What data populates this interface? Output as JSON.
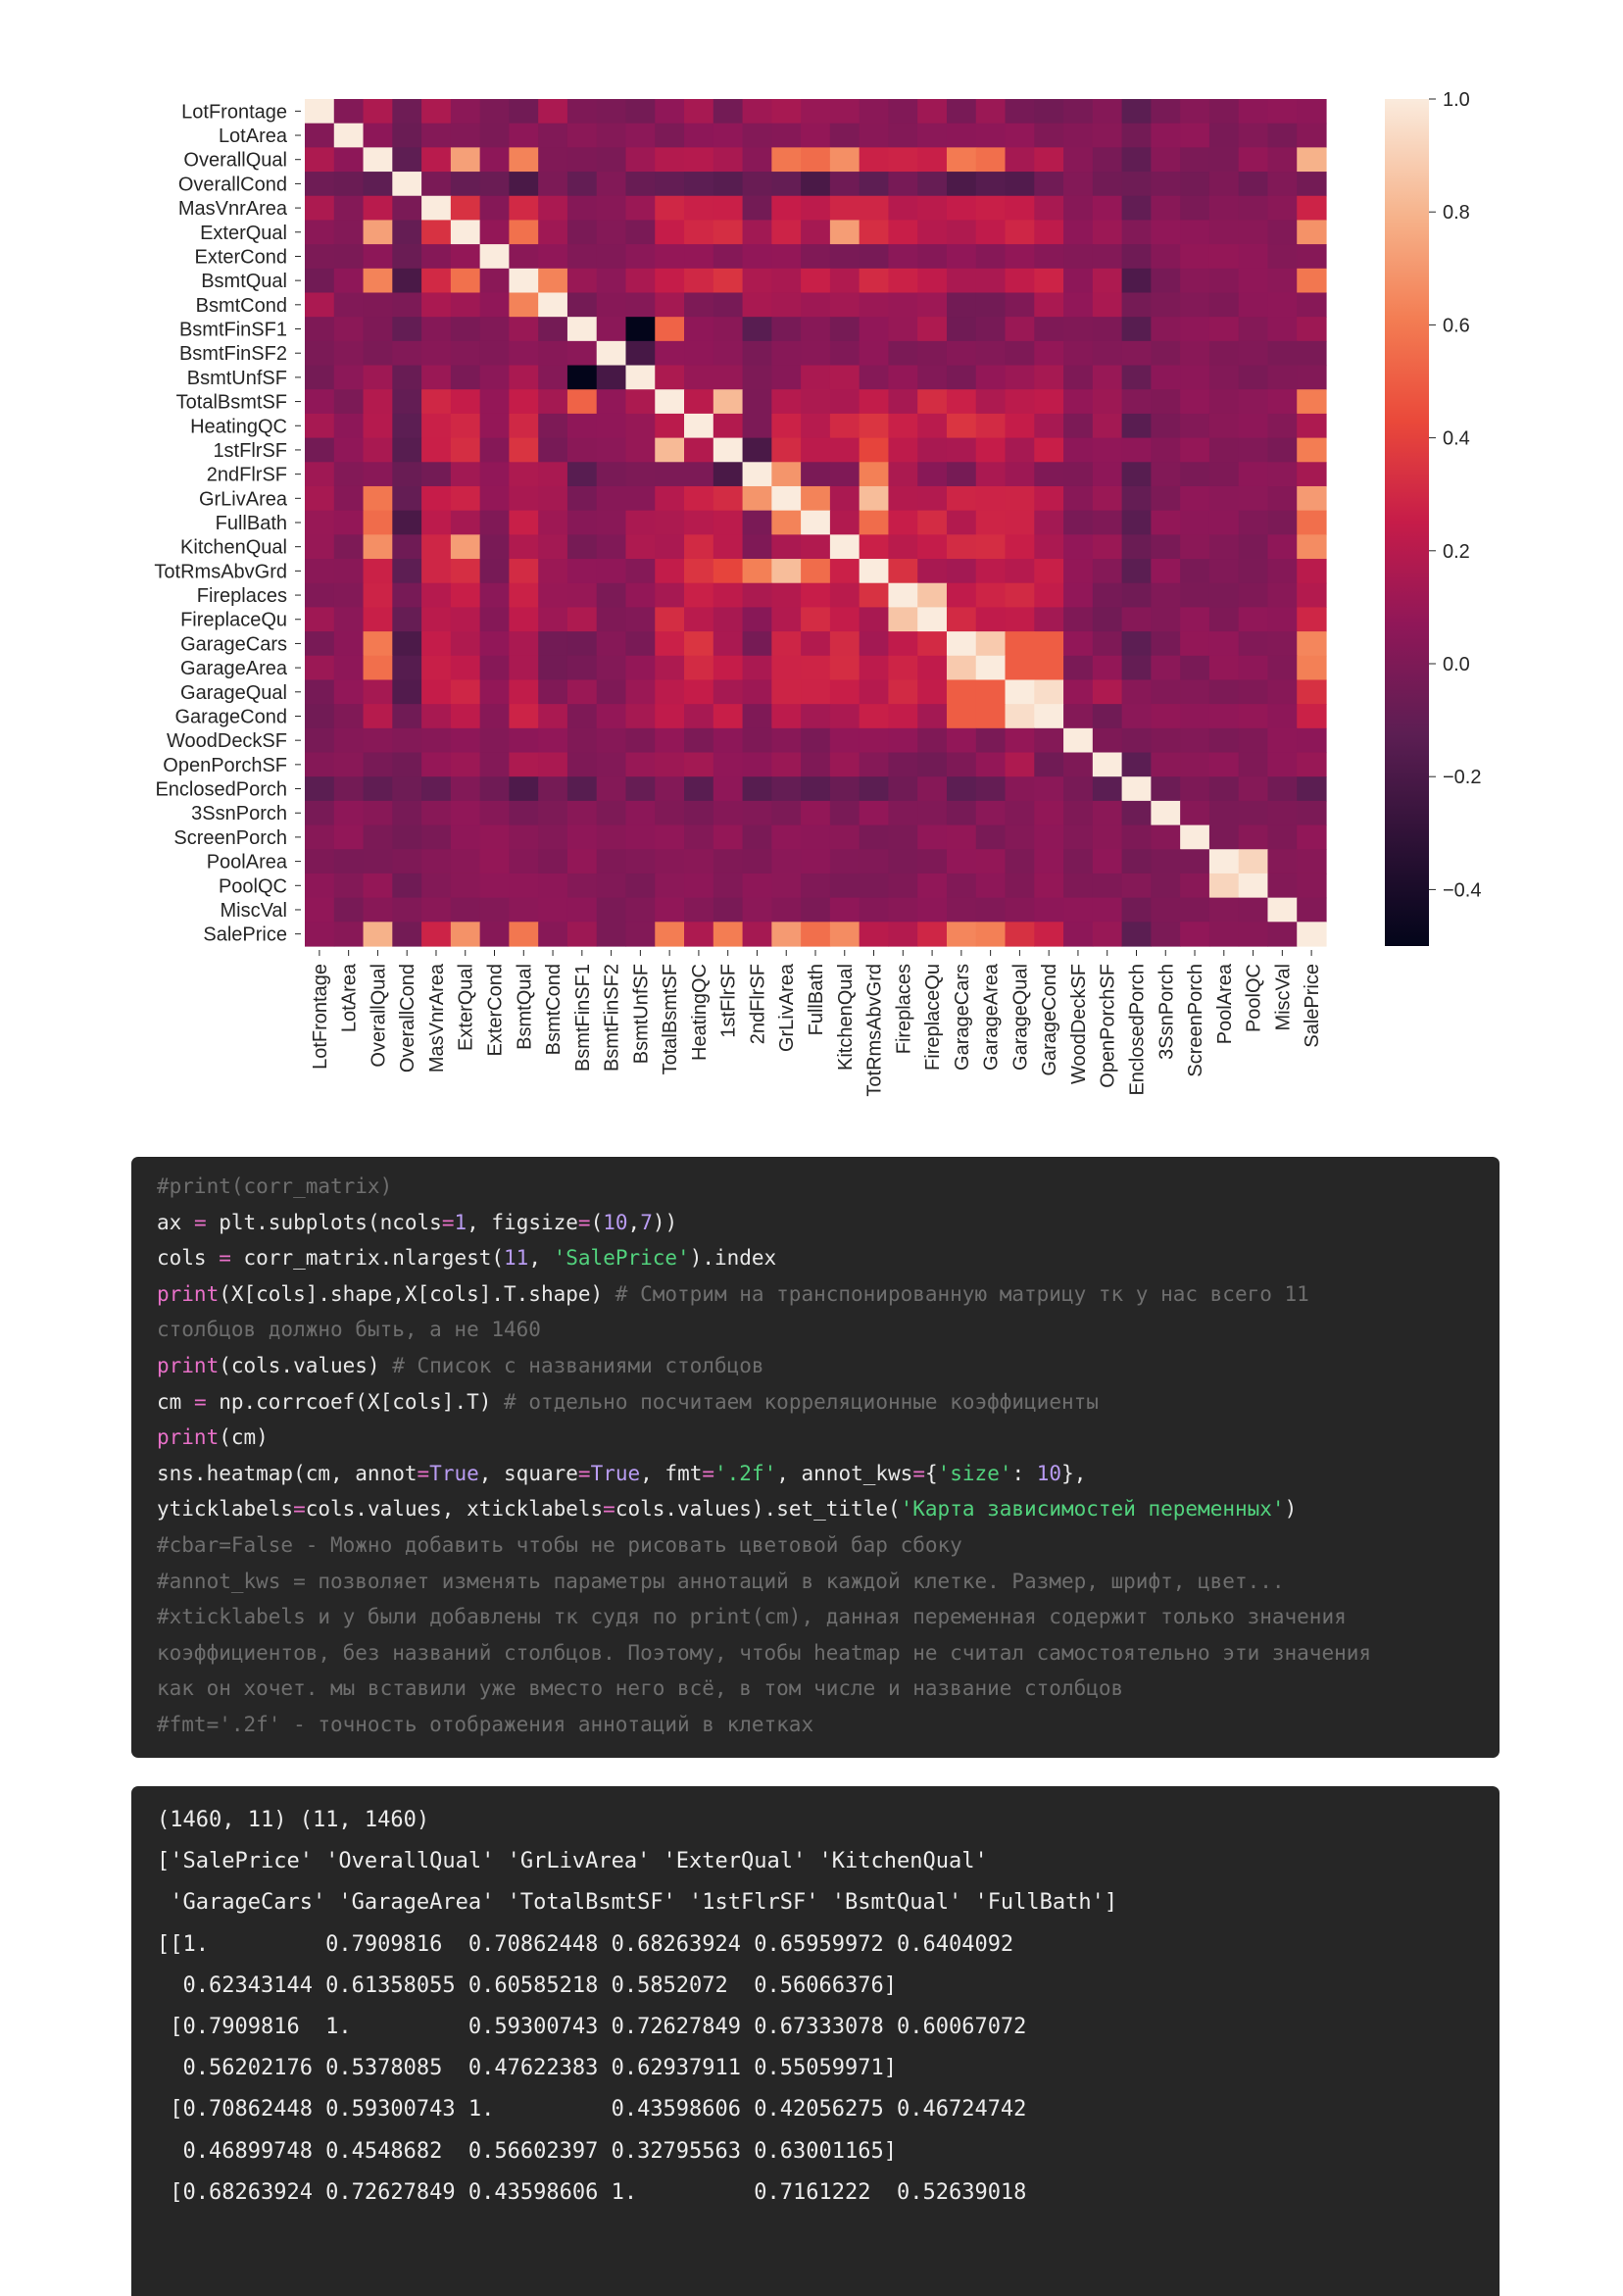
{
  "chart_data": {
    "type": "heatmap",
    "labels": [
      "LotFrontage",
      "LotArea",
      "OverallQual",
      "OverallCond",
      "MasVnrArea",
      "ExterQual",
      "ExterCond",
      "BsmtQual",
      "BsmtCond",
      "BsmtFinSF1",
      "BsmtFinSF2",
      "BsmtUnfSF",
      "TotalBsmtSF",
      "HeatingQC",
      "1stFlrSF",
      "2ndFlrSF",
      "GrLivArea",
      "FullBath",
      "KitchenQual",
      "TotRmsAbvGrd",
      "Fireplaces",
      "FireplaceQu",
      "GarageCars",
      "GarageArea",
      "GarageQual",
      "GarageCond",
      "WoodDeckSF",
      "OpenPorchSF",
      "EnclosedPorch",
      "3SsnPorch",
      "ScreenPorch",
      "PoolArea",
      "PoolQC",
      "MiscVal",
      "SalePrice"
    ],
    "colorbar": {
      "min": -0.5,
      "max": 1.0,
      "ticks": [
        1.0,
        0.8,
        0.6,
        0.4,
        0.2,
        0.0,
        -0.2,
        -0.4
      ],
      "tick_labels": [
        "1.0",
        "0.8",
        "0.6",
        "0.4",
        "0.2",
        "0.0",
        "−0.2",
        "−0.4"
      ]
    },
    "colormap": "rocket",
    "strong_pairs": [
      [
        "GarageCars",
        "GarageArea",
        0.88
      ],
      [
        "GarageQual",
        "GarageCond",
        0.95
      ],
      [
        "PoolArea",
        "PoolQC",
        0.92
      ],
      [
        "TotalBsmtSF",
        "1stFlrSF",
        0.82
      ],
      [
        "GrLivArea",
        "TotRmsAbvGrd",
        0.83
      ],
      [
        "Fireplaces",
        "FireplaceQu",
        0.86
      ],
      [
        "OverallQual",
        "SalePrice",
        0.79
      ],
      [
        "GrLivArea",
        "SalePrice",
        0.71
      ],
      [
        "ExterQual",
        "SalePrice",
        0.68
      ],
      [
        "KitchenQual",
        "SalePrice",
        0.66
      ],
      [
        "GarageCars",
        "SalePrice",
        0.64
      ],
      [
        "GarageArea",
        "SalePrice",
        0.62
      ],
      [
        "TotalBsmtSF",
        "SalePrice",
        0.61
      ],
      [
        "1stFlrSF",
        "SalePrice",
        0.61
      ],
      [
        "BsmtQual",
        "SalePrice",
        0.59
      ],
      [
        "FullBath",
        "SalePrice",
        0.56
      ],
      [
        "OverallQual",
        "ExterQual",
        0.73
      ],
      [
        "OverallQual",
        "GrLivArea",
        0.59
      ],
      [
        "OverallQual",
        "KitchenQual",
        0.67
      ],
      [
        "OverallQual",
        "BsmtQual",
        0.63
      ],
      [
        "OverallQual",
        "GarageCars",
        0.6
      ],
      [
        "OverallQual",
        "GarageArea",
        0.56
      ],
      [
        "OverallQual",
        "FullBath",
        0.55
      ],
      [
        "ExterQual",
        "KitchenQual",
        0.72
      ],
      [
        "ExterQual",
        "BsmtQual",
        0.57
      ],
      [
        "GrLivArea",
        "2ndFlrSF",
        0.69
      ],
      [
        "GrLivArea",
        "FullBath",
        0.63
      ],
      [
        "TotRmsAbvGrd",
        "2ndFlrSF",
        0.62
      ],
      [
        "BsmtFinSF1",
        "BsmtUnfSF",
        -0.5
      ],
      [
        "BsmtFinSF1",
        "TotalBsmtSF",
        0.52
      ],
      [
        "2ndFlrSF",
        "1stFlrSF",
        -0.2
      ],
      [
        "BsmtQual",
        "BsmtCond",
        0.63
      ],
      [
        "GarageCars",
        "GarageQual",
        0.5
      ],
      [
        "GarageCars",
        "GarageCond",
        0.5
      ],
      [
        "GarageArea",
        "GarageQual",
        0.5
      ],
      [
        "GarageArea",
        "GarageCond",
        0.5
      ],
      [
        "TotRmsAbvGrd",
        "FullBath",
        0.55
      ],
      [
        "TotRmsAbvGrd",
        "1stFlrSF",
        0.41
      ],
      [
        "OverallCond",
        "GarageCars",
        -0.19
      ],
      [
        "OverallCond",
        "GarageArea",
        -0.15
      ],
      [
        "OverallCond",
        "BsmtQual",
        -0.2
      ],
      [
        "OverallCond",
        "FullBath",
        -0.2
      ],
      [
        "EnclosedPorch",
        "BsmtQual",
        -0.18
      ],
      [
        "EnclosedPorch",
        "OverallQual",
        -0.11
      ],
      [
        "EnclosedPorch",
        "SalePrice",
        -0.13
      ],
      [
        "BsmtFinSF1",
        "2ndFlrSF",
        -0.14
      ],
      [
        "BsmtUnfSF",
        "2ndFlrSF",
        0.0
      ],
      [
        "BsmtUnfSF",
        "BsmtFinSF2",
        -0.21
      ]
    ]
  },
  "code_cell": {
    "lines": [
      [
        [
          "#print(corr_matrix)",
          "comment"
        ]
      ],
      [
        [
          "ax ",
          "plain"
        ],
        [
          "=",
          "op"
        ],
        [
          " plt.subplots(ncols",
          "plain"
        ],
        [
          "=",
          "op"
        ],
        [
          "1",
          "num"
        ],
        [
          ", figsize",
          "plain"
        ],
        [
          "=",
          "op"
        ],
        [
          "(",
          "plain"
        ],
        [
          "10",
          "num"
        ],
        [
          ",",
          "plain"
        ],
        [
          "7",
          "num"
        ],
        [
          "))",
          "plain"
        ]
      ],
      [
        [
          "cols ",
          "plain"
        ],
        [
          "=",
          "op"
        ],
        [
          " corr_matrix.nlargest(",
          "plain"
        ],
        [
          "11",
          "num"
        ],
        [
          ", ",
          "plain"
        ],
        [
          "'SalePrice'",
          "str"
        ],
        [
          ").index",
          "plain"
        ]
      ],
      [
        [
          "print",
          "kw"
        ],
        [
          "(X[cols].shape,X[cols].T.shape) ",
          "plain"
        ],
        [
          "# Смотрим на транспонированную матрицу тк у нас всего 11",
          "comment"
        ]
      ],
      [
        [
          "столбцов должно быть, а не 1460",
          "comment"
        ]
      ],
      [
        [
          "print",
          "kw"
        ],
        [
          "(cols.values) ",
          "plain"
        ],
        [
          "# Список с названиями столбцов",
          "comment"
        ]
      ],
      [
        [
          "cm ",
          "plain"
        ],
        [
          "=",
          "op"
        ],
        [
          " np.corrcoef(X[cols].T) ",
          "plain"
        ],
        [
          "# отдельно посчитаем корреляционные коэффициенты",
          "comment"
        ]
      ],
      [
        [
          "print",
          "kw"
        ],
        [
          "(cm)",
          "plain"
        ]
      ],
      [
        [
          "sns.heatmap(cm, annot",
          "plain"
        ],
        [
          "=",
          "op"
        ],
        [
          "True",
          "num"
        ],
        [
          ", square",
          "plain"
        ],
        [
          "=",
          "op"
        ],
        [
          "True",
          "num"
        ],
        [
          ", fmt",
          "plain"
        ],
        [
          "=",
          "op"
        ],
        [
          "'.2f'",
          "str"
        ],
        [
          ", annot_kws",
          "plain"
        ],
        [
          "=",
          "op"
        ],
        [
          "{",
          "plain"
        ],
        [
          "'size'",
          "str"
        ],
        [
          ": ",
          "plain"
        ],
        [
          "10",
          "num"
        ],
        [
          "},",
          "plain"
        ]
      ],
      [
        [
          "yticklabels",
          "plain"
        ],
        [
          "=",
          "op"
        ],
        [
          "cols.values, xticklabels",
          "plain"
        ],
        [
          "=",
          "op"
        ],
        [
          "cols.values).set_title(",
          "plain"
        ],
        [
          "'Карта зависимостей переменных'",
          "str"
        ],
        [
          ")",
          "plain"
        ]
      ],
      [
        [
          "#cbar=False - Можно добавить чтобы не рисовать цветовой бар сбоку",
          "comment"
        ]
      ],
      [
        [
          "#annot_kws = позволяет изменять параметры аннотаций в каждой клетке. Размер, шрифт, цвет...",
          "comment"
        ]
      ],
      [
        [
          "#xticklabels и у были добавлены тк судя по print(cm), данная переменная содержит только значения",
          "comment"
        ]
      ],
      [
        [
          "коэффициентов, без названий столбцов. Поэтому, чтобы heatmap не считал самостоятельно эти значения",
          "comment"
        ]
      ],
      [
        [
          "как он хочет. мы вставили уже вместо него всё, в том числе и название столбцов",
          "comment"
        ]
      ],
      [
        [
          "#fmt='.2f' - точность отображения аннотаций в клетках",
          "comment"
        ]
      ]
    ]
  },
  "output_cell": {
    "lines": [
      "(1460, 11) (11, 1460)",
      "['SalePrice' 'OverallQual' 'GrLivArea' 'ExterQual' 'KitchenQual'",
      " 'GarageCars' 'GarageArea' 'TotalBsmtSF' '1stFlrSF' 'BsmtQual' 'FullBath']",
      "[[1.         0.7909816  0.70862448 0.68263924 0.65959972 0.6404092",
      "  0.62343144 0.61358055 0.60585218 0.5852072  0.56066376]",
      " [0.7909816  1.         0.59300743 0.72627849 0.67333078 0.60067072",
      "  0.56202176 0.5378085  0.47622383 0.62937911 0.55059971]",
      " [0.70862448 0.59300743 1.         0.43598606 0.42056275 0.46724742",
      "  0.46899748 0.4548682  0.56602397 0.32795563 0.63001165]",
      " [0.68263924 0.72627849 0.43598606 1.         0.7161222  0.52639018"
    ]
  }
}
